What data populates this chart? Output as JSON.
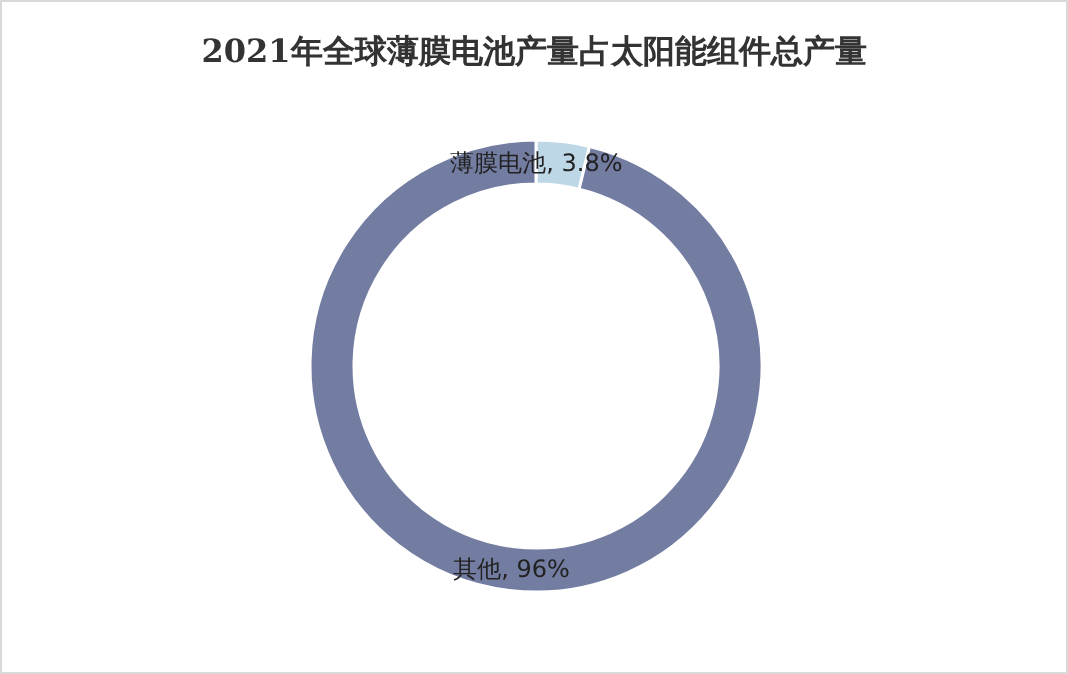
{
  "chart_data": {
    "type": "donut",
    "title": "2021年全球薄膜电池产量占太阳能组件总产量",
    "categories": [
      "薄膜电池",
      "其他"
    ],
    "values": [
      3.8,
      96
    ],
    "value_labels": [
      "3.8%",
      "96%"
    ],
    "colors": [
      "#bdd7e7",
      "#737ca1"
    ],
    "legend": false
  }
}
